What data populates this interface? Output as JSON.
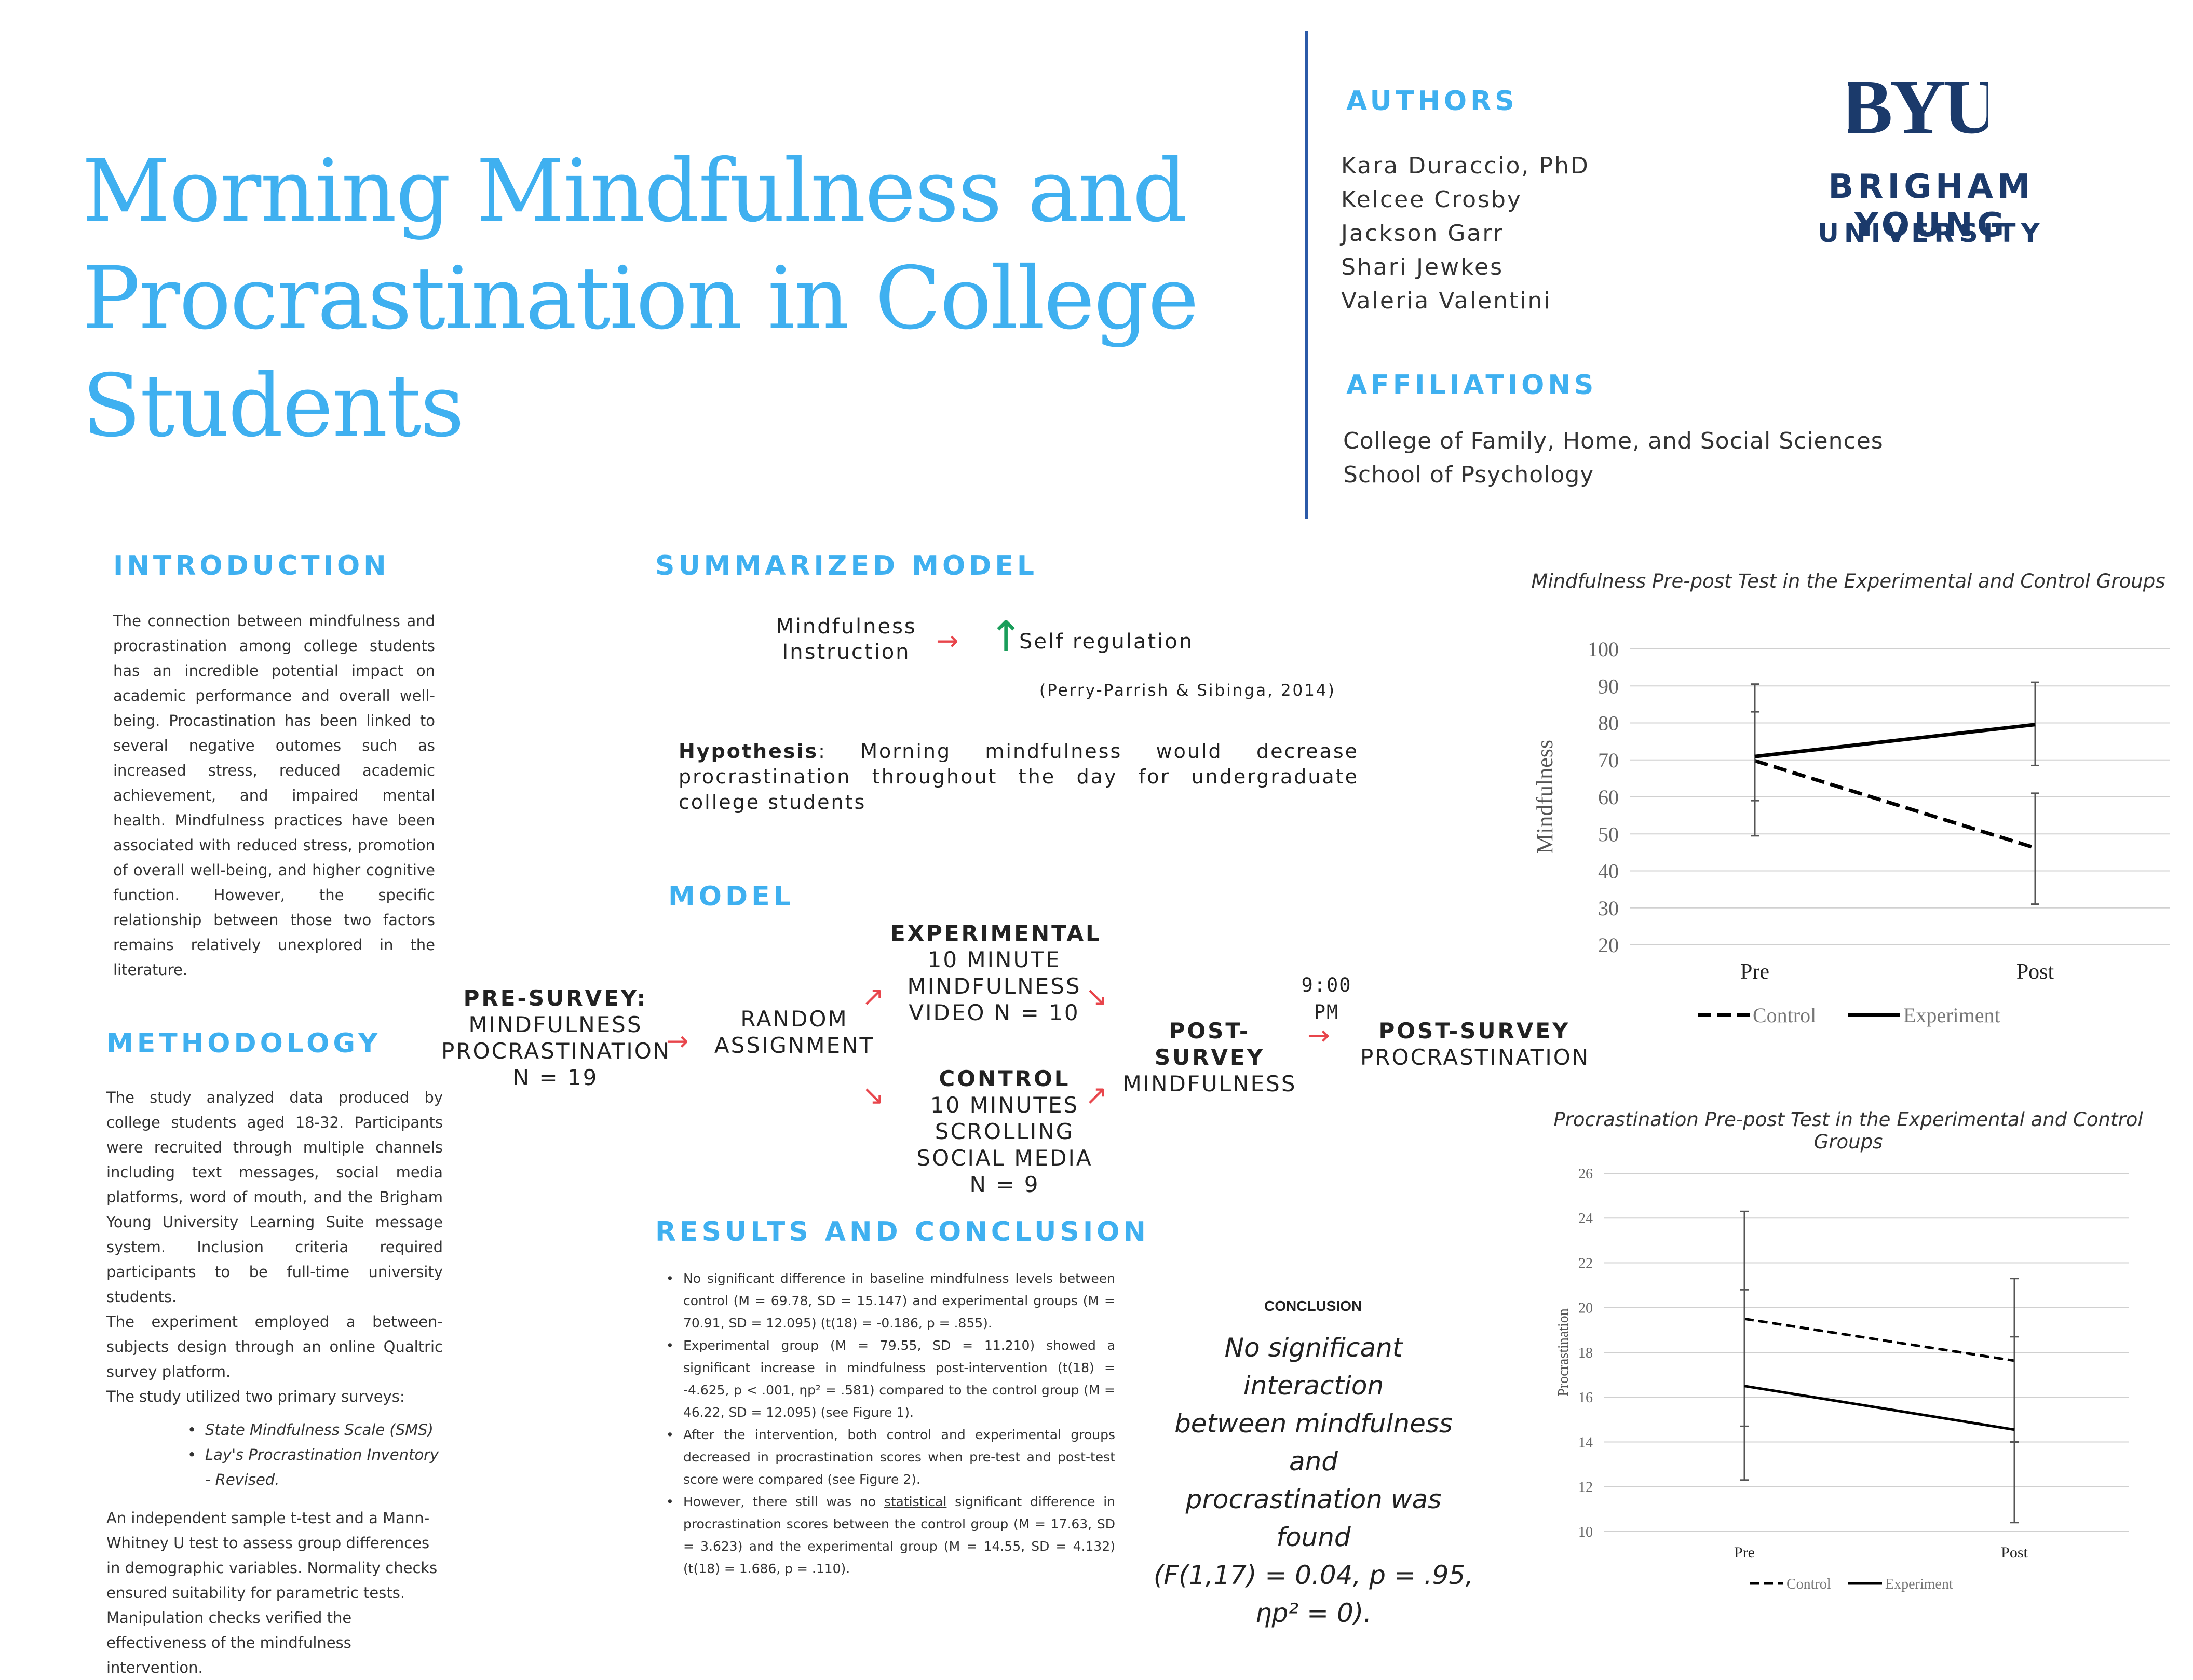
{
  "title": "Morning Mindfulness and Procrastination in College Students",
  "authors": {
    "heading": "AUTHORS",
    "names": [
      "Kara Duraccio, PhD",
      "Kelcee Crosby",
      "Jackson Garr",
      "Shari Jewkes",
      "Valeria Valentini"
    ]
  },
  "affiliations": {
    "heading": "AFFILIATIONS",
    "items": [
      "College of Family, Home, and Social Sciences",
      "School of Psychology"
    ]
  },
  "logo": {
    "mark": "BYU",
    "line1": "BRIGHAM YOUNG",
    "line2": "UNIVERSITY",
    "color": "#1b3a6b"
  },
  "introduction": {
    "heading": "INTRODUCTION",
    "text": "The connection between mindfulness and procrastination among college students has an incredible potential impact on academic performance and overall well-being. Procastination has been linked to several negative outomes such as increased stress, reduced academic achievement, and impaired mental health. Mindfulness practices have been associated with reduced stress, promotion of overall well-being, and higher cognitive function. However, the specific relationship between those two factors remains relatively unexplored in the literature."
  },
  "methodology": {
    "heading": "METHODOLOGY",
    "p1": "The study analyzed data produced by college students aged 18-32. Participants were recruited through multiple channels including text messages, social media platforms, word of mouth, and the Brigham Young University Learning Suite message system. Inclusion criteria required participants to be full-time university students.",
    "p2": "The experiment employed a between-subjects design through an online Qualtric survey platform.",
    "p3": "The study utilized two primary surveys:",
    "surveys": [
      "State Mindfulness Scale (SMS)",
      "Lay's Procrastination Inventory - Revised."
    ],
    "p4": "An independent sample t-test and a Mann-Whitney U test to assess group differences in demographic variables. Normality checks ensured suitability for parametric tests. Manipulation checks verified the effectiveness of the mindfulness intervention."
  },
  "summarized_model": {
    "heading": "SUMMARIZED MODEL",
    "left_line1": "Mindfulness",
    "left_line2": "Instruction",
    "arrow": "→",
    "up_arrow": "↑",
    "right": "Self regulation",
    "citation": "(Perry-Parrish & Sibinga, 2014)",
    "hypothesis_label": "Hypothesis",
    "hypothesis_text": ": Morning mindfulness would decrease procrastination throughout the day for undergraduate college students"
  },
  "model": {
    "heading": "MODEL",
    "pre_bold": "PRE-SURVEY:",
    "pre_l1": "MINDFULNESS",
    "pre_l2": "PROCRASTINATION",
    "pre_l3": "N = 19",
    "random_l1": "RANDOM",
    "random_l2": "ASSIGNMENT",
    "exp_bold": "EXPERIMENTAL",
    "exp_l1": "10 MINUTE",
    "exp_l2": "MINDFULNESS",
    "exp_l3": "VIDEO N = 10",
    "ctrl_bold": "CONTROL",
    "ctrl_l1": "10 MINUTES",
    "ctrl_l2": "SCROLLING",
    "ctrl_l3": "SOCIAL MEDIA",
    "ctrl_l4": "N = 9",
    "time_l1": "9:00",
    "time_l2": "PM",
    "post1_bold": "POST-SURVEY",
    "post1_l1": "MINDFULNESS",
    "post2_bold": "POST-SURVEY",
    "post2_l1": "PROCRASTINATION",
    "arrow_right": "→",
    "arrow_up": "↗",
    "arrow_down": "↘"
  },
  "results": {
    "heading": "RESULTS AND CONCLUSION",
    "b1": "No significant difference in baseline mindfulness levels between control (M = 69.78, SD = 15.147) and experimental groups (M = 70.91, SD = 12.095) (t(18) = -0.186, p = .855).",
    "b2": "Experimental group (M = 79.55, SD = 11.210) showed a significant increase in mindfulness post-intervention (t(18) = -4.625, p < .001, ηp² = .581) compared to the control group (M = 46.22, SD = 12.095) (see Figure 1).",
    "b3": "After the intervention, both control and experimental groups decreased in procrastination scores when pre-test and post-test score were compared (see Figure 2).",
    "b4_pre": "However, there still was no ",
    "b4_u": "statistical",
    "b4_post": " significant difference in procrastination scores between the control group (M = 17.63, SD = 3.623) and the experimental group (M = 14.55, SD = 4.132) (t(18) = 1.686, p = .110)."
  },
  "conclusion": {
    "heading": "CONCLUSION",
    "l1": "No significant interaction",
    "l2": "between mindfulness and",
    "l3": "procrastination was found",
    "l4": "(F(1,17) = 0.04, p = .95,",
    "l5": "ηp² = 0)."
  },
  "chart_data": [
    {
      "type": "line",
      "title": "Mindfulness Pre-post Test in the Experimental and Control Groups",
      "ylabel": "Mindfulness",
      "categories": [
        "Pre",
        "Post"
      ],
      "ylim": [
        20,
        100
      ],
      "yticks": [
        100,
        90,
        80,
        70,
        60,
        50,
        40,
        30,
        20
      ],
      "grid": true,
      "legend": "bottom",
      "series": [
        {
          "name": "Control",
          "values": [
            69.78,
            46.22
          ],
          "error_low": [
            49.5,
            31
          ],
          "error_high": [
            83,
            61
          ],
          "style": "dashed"
        },
        {
          "name": "Experiment",
          "values": [
            70.91,
            79.55
          ],
          "error_low": [
            59,
            68.5
          ],
          "error_high": [
            90.5,
            91
          ],
          "style": "solid"
        }
      ]
    },
    {
      "type": "line",
      "title": "Procrastination Pre-post Test in the Experimental and Control Groups",
      "ylabel": "Procrastination",
      "categories": [
        "Pre",
        "Post"
      ],
      "ylim": [
        10,
        26
      ],
      "yticks": [
        26,
        24,
        22,
        20,
        18,
        16,
        14,
        12,
        10
      ],
      "grid": true,
      "legend": "bottom",
      "series": [
        {
          "name": "Control",
          "values": [
            19.5,
            17.63
          ],
          "error_low": [
            14.7,
            14.0
          ],
          "error_high": [
            24.3,
            21.3
          ],
          "style": "dashed"
        },
        {
          "name": "Experiment",
          "values": [
            16.5,
            14.55
          ],
          "error_low": [
            12.3,
            10.4
          ],
          "error_high": [
            20.8,
            18.7
          ],
          "style": "solid"
        }
      ]
    }
  ]
}
